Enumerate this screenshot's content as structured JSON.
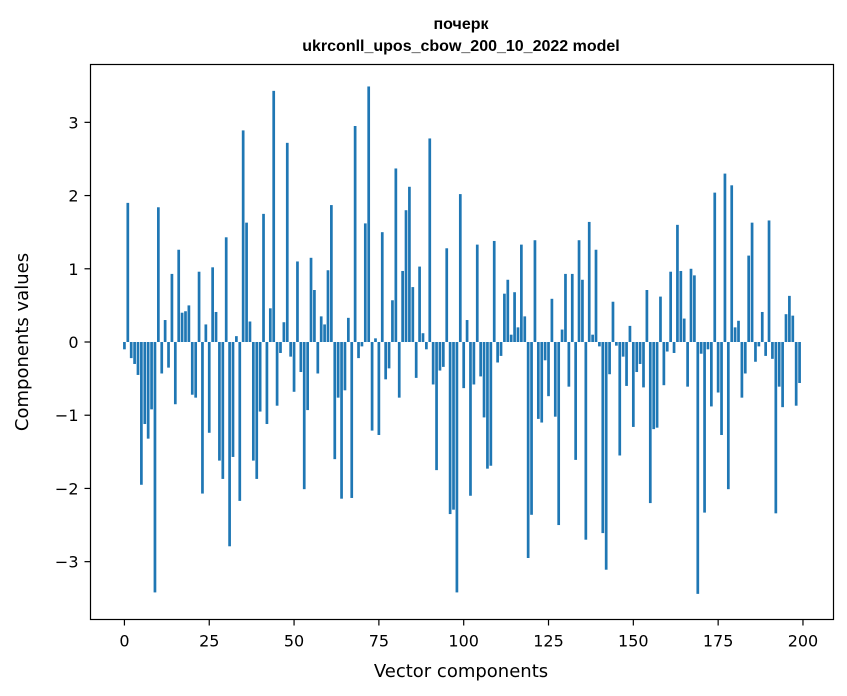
{
  "chart_data": {
    "type": "bar",
    "title_line1": "почерк",
    "title_line2": "ukrconll_upos_cbow_200_10_2022 model",
    "xlabel": "Vector components",
    "ylabel": "Components values",
    "xlim": [
      -10,
      209
    ],
    "ylim": [
      -3.79,
      3.79
    ],
    "xticks": [
      0,
      25,
      50,
      75,
      100,
      125,
      150,
      175,
      200
    ],
    "yticks": [
      -3,
      -2,
      -1,
      0,
      1,
      2,
      3
    ],
    "bar_color": "#1f77b4",
    "grid": false,
    "values": [
      -0.1,
      1.9,
      -0.22,
      -0.3,
      -0.45,
      -1.95,
      -1.12,
      -1.32,
      -0.92,
      -3.42,
      1.84,
      -0.43,
      0.3,
      -0.35,
      0.93,
      -0.85,
      1.26,
      0.4,
      0.42,
      0.5,
      -0.72,
      -0.76,
      0.96,
      -2.07,
      0.24,
      -1.24,
      1.02,
      0.41,
      -1.62,
      -1.87,
      1.43,
      -2.79,
      -1.57,
      0.08,
      -2.17,
      2.89,
      1.63,
      0.28,
      -1.62,
      -1.87,
      -0.95,
      1.75,
      -1.12,
      0.46,
      3.43,
      -0.87,
      -0.15,
      0.27,
      2.72,
      -0.2,
      -0.68,
      1.1,
      -0.41,
      -2.01,
      -0.93,
      1.15,
      0.71,
      -0.43,
      0.35,
      0.24,
      0.98,
      1.87,
      -1.6,
      -0.76,
      -2.14,
      -0.66,
      0.33,
      -2.13,
      2.95,
      -0.22,
      -0.06,
      1.62,
      3.49,
      -1.21,
      0.05,
      -1.27,
      1.5,
      -0.51,
      -0.36,
      0.57,
      2.37,
      -0.76,
      0.97,
      1.8,
      2.12,
      0.75,
      -0.49,
      1.03,
      0.12,
      -0.1,
      2.78,
      -0.58,
      -1.75,
      -0.39,
      -0.34,
      1.28,
      -2.35,
      -2.29,
      -3.42,
      2.02,
      -0.63,
      0.3,
      -2.1,
      -0.58,
      1.33,
      -0.47,
      -1.03,
      -1.73,
      -1.69,
      1.38,
      -0.28,
      -0.19,
      0.66,
      0.85,
      0.1,
      0.68,
      0.2,
      1.33,
      0.35,
      -2.95,
      -2.36,
      1.39,
      -1.05,
      -1.1,
      -0.25,
      -0.74,
      0.59,
      -1.02,
      -2.5,
      0.17,
      0.93,
      -0.61,
      0.93,
      -1.61,
      1.39,
      0.85,
      -2.7,
      1.64,
      0.1,
      1.26,
      -0.06,
      -2.61,
      -3.11,
      -0.44,
      0.55,
      -0.05,
      -1.55,
      -0.2,
      -0.6,
      0.22,
      -1.16,
      -0.41,
      -0.3,
      -0.62,
      0.71,
      -2.2,
      -1.19,
      -1.17,
      0.62,
      -0.59,
      -0.13,
      0.96,
      -0.15,
      1.6,
      0.97,
      0.32,
      -0.61,
      1.0,
      0.91,
      -3.44,
      -0.16,
      -2.33,
      -0.1,
      -0.88,
      2.04,
      -0.69,
      -1.27,
      2.3,
      -2.01,
      2.14,
      0.2,
      0.29,
      -0.76,
      -0.43,
      1.18,
      1.63,
      -0.27,
      -0.06,
      0.41,
      -0.19,
      1.66,
      -0.23,
      -2.34,
      -0.61,
      -0.89,
      0.38,
      0.63,
      0.36,
      -0.87,
      -0.56
    ]
  }
}
